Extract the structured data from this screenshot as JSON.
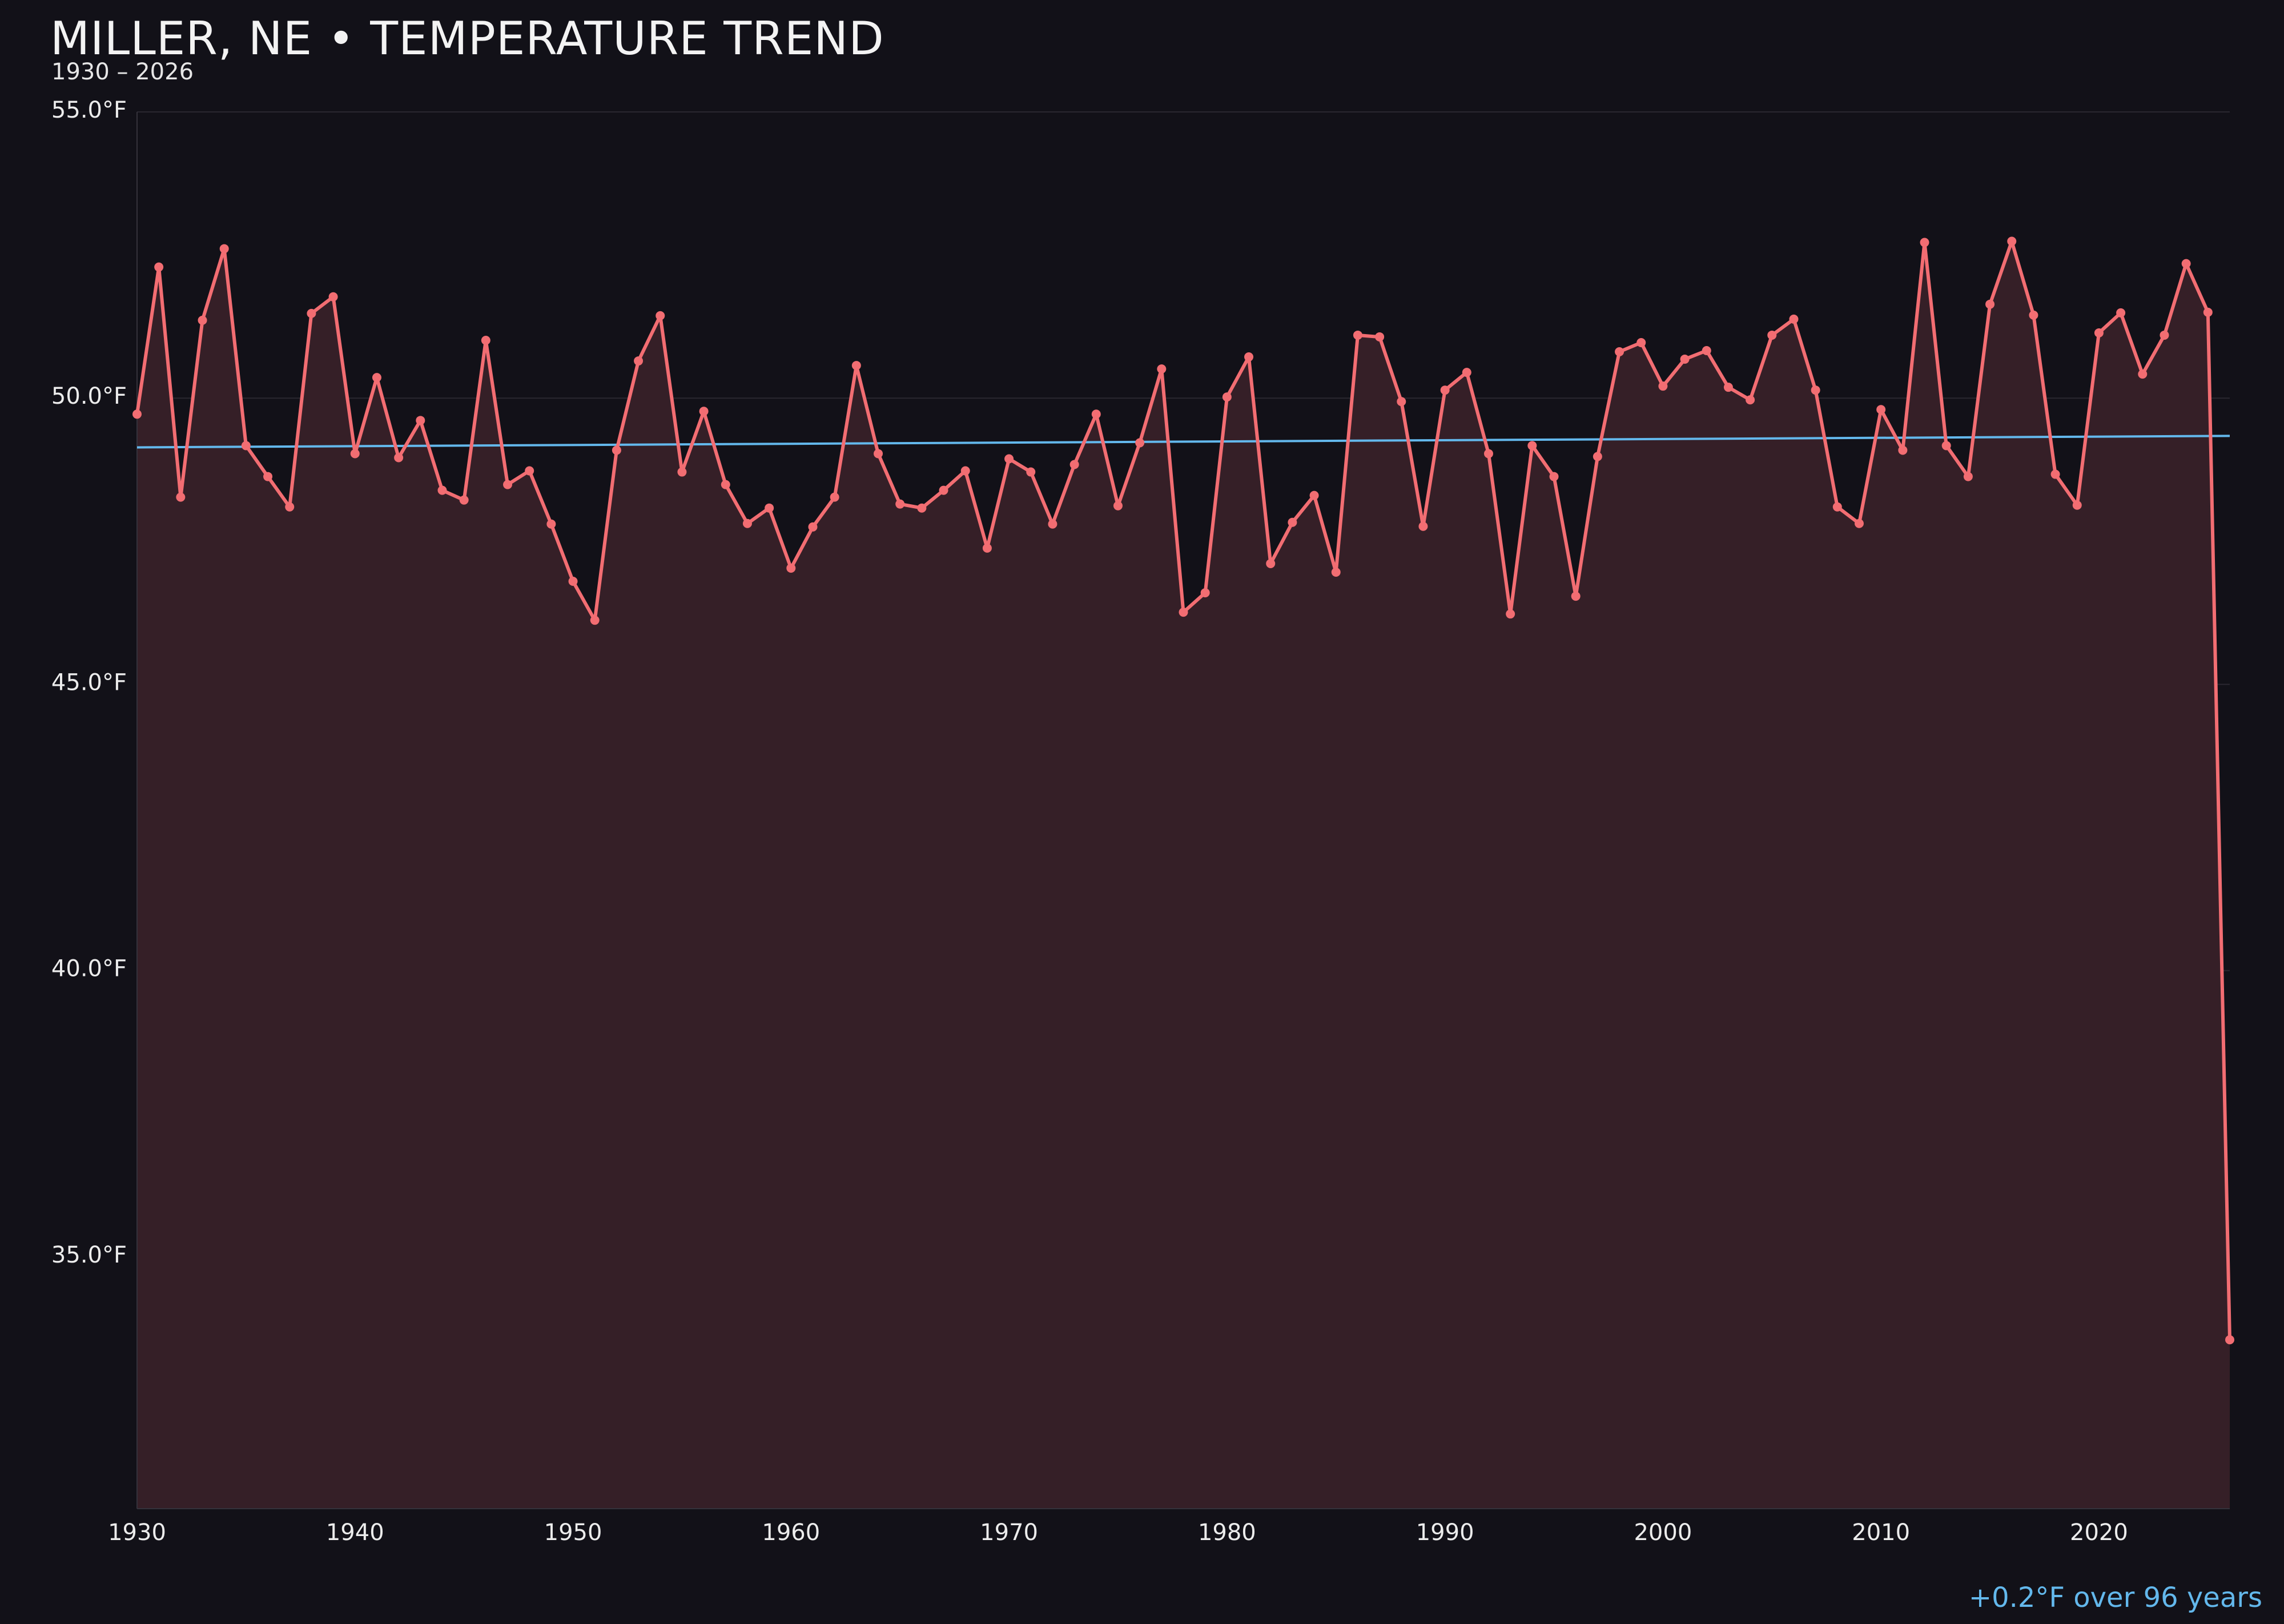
{
  "chart_data": {
    "type": "line",
    "title": "MILLER, NE • TEMPERATURE TREND",
    "subtitle": "1930 – 2026",
    "annotation": "+0.2°F over 96 years",
    "xlabel": "",
    "ylabel": "",
    "xlim": [
      1930,
      2026
    ],
    "ylim": [
      30.6,
      55.0
    ],
    "x_ticks": [
      1930,
      1940,
      1950,
      1960,
      1970,
      1980,
      1990,
      2000,
      2010,
      2020
    ],
    "y_ticks": [
      35.0,
      40.0,
      45.0,
      50.0,
      55.0
    ],
    "y_tick_labels": [
      "35.0°F",
      "40.0°F",
      "45.0°F",
      "50.0°F",
      "55.0°F"
    ],
    "grid": true,
    "legend": "none",
    "colors": {
      "series": "#f26d72",
      "fill": "#351f27",
      "trend": "#63b8ec",
      "background": "#121118"
    },
    "series": [
      {
        "x": [
          1930,
          1931,
          1932,
          1933,
          1934,
          1935,
          1936,
          1937,
          1938,
          1939,
          1940,
          1941,
          1942,
          1943,
          1944,
          1945,
          1946,
          1947,
          1948,
          1949,
          1950,
          1951,
          1952,
          1953,
          1954,
          1955,
          1956,
          1957,
          1958,
          1959,
          1960,
          1961,
          1962,
          1963,
          1964,
          1965,
          1966,
          1967,
          1968,
          1969,
          1970,
          1971,
          1972,
          1973,
          1974,
          1975,
          1976,
          1977,
          1978,
          1979,
          1980,
          1981,
          1982,
          1983,
          1984,
          1985,
          1986,
          1987,
          1988,
          1989,
          1990,
          1991,
          1992,
          1993,
          1994,
          1995,
          1996,
          1997,
          1998,
          1999,
          2000,
          2001,
          2002,
          2003,
          2004,
          2005,
          2006,
          2007,
          2008,
          2009,
          2010,
          2011,
          2012,
          2013,
          2014,
          2015,
          2016,
          2017,
          2018,
          2019,
          2020,
          2021,
          2022,
          2023,
          2024,
          2025,
          2026
        ],
        "values": [
          49.72,
          52.29,
          48.27,
          51.36,
          52.61,
          49.17,
          48.63,
          48.1,
          51.48,
          51.77,
          49.03,
          50.36,
          48.96,
          49.61,
          48.39,
          48.22,
          51.01,
          48.49,
          48.73,
          47.8,
          46.8,
          46.12,
          49.09,
          50.65,
          51.44,
          48.71,
          49.77,
          48.49,
          47.81,
          48.08,
          47.03,
          47.75,
          48.27,
          50.57,
          49.03,
          48.15,
          48.08,
          48.39,
          48.73,
          47.38,
          48.94,
          48.71,
          47.8,
          48.84,
          49.72,
          48.12,
          49.22,
          50.51,
          46.26,
          46.6,
          50.02,
          50.72,
          47.11,
          47.83,
          48.3,
          46.96,
          51.1,
          51.07,
          49.94,
          47.76,
          50.14,
          50.45,
          49.03,
          46.23,
          49.17,
          48.63,
          46.54,
          48.98,
          50.81,
          50.97,
          50.21,
          50.68,
          50.83,
          50.19,
          49.97,
          51.1,
          51.38,
          50.14,
          48.1,
          47.81,
          49.8,
          49.09,
          52.72,
          49.17,
          48.63,
          51.64,
          52.74,
          51.45,
          48.67,
          48.13,
          51.14,
          51.49,
          50.42,
          51.1,
          52.35,
          51.5,
          33.55
        ]
      }
    ],
    "trend": {
      "x": [
        1930,
        2026
      ],
      "values": [
        49.14,
        49.34
      ]
    }
  }
}
